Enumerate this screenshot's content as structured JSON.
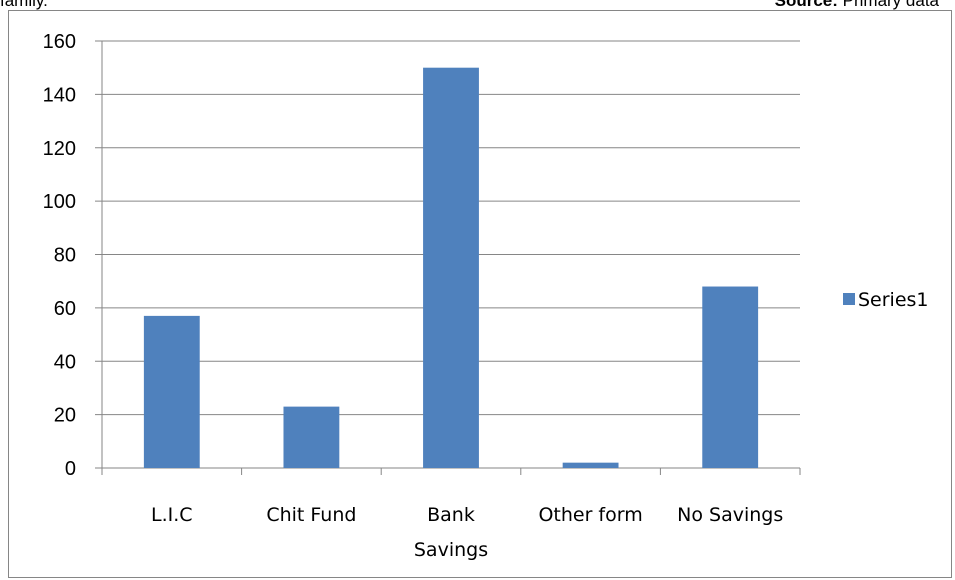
{
  "header": {
    "clipped_text": "family.",
    "source_label": "Source:",
    "source_value": " Primary data"
  },
  "chart_data": {
    "type": "bar",
    "categories": [
      "L.I.C",
      "Chit Fund",
      "Bank Savings",
      "Other form",
      "No Savings"
    ],
    "category_lines": [
      [
        "L.I.C"
      ],
      [
        "Chit Fund"
      ],
      [
        "Bank",
        "Savings"
      ],
      [
        "Other form"
      ],
      [
        "No Savings"
      ]
    ],
    "series": [
      {
        "name": "Series1",
        "values": [
          57,
          23,
          150,
          2,
          68
        ],
        "color": "#4F81BD"
      }
    ],
    "ylim": [
      0,
      160
    ],
    "yticks": [
      0,
      20,
      40,
      60,
      80,
      100,
      120,
      140,
      160
    ],
    "grid": true,
    "gridline_color": "#868686",
    "legend_position": "right",
    "title": "",
    "xlabel": "",
    "ylabel": ""
  }
}
